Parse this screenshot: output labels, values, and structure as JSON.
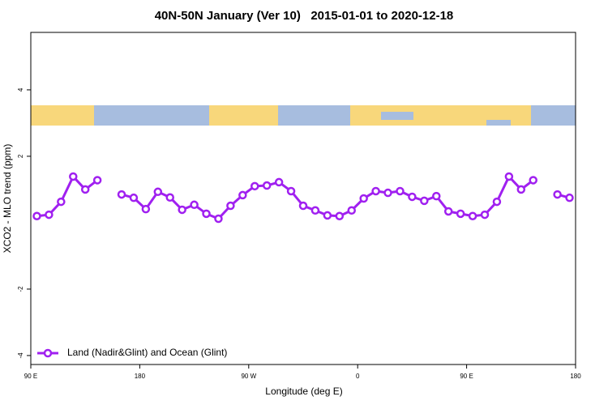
{
  "chart_data": {
    "type": "line",
    "title": "40N-50N January (Ver 10)   2015-01-01 to 2020-12-18",
    "xlabel": "Longitude (deg E)",
    "ylabel": "XCO2 - MLO trend (ppm)",
    "x": [
      95,
      105,
      115,
      125,
      135,
      145,
      155,
      165,
      175,
      185,
      195,
      205,
      215,
      225,
      235,
      245,
      255,
      265,
      275,
      285,
      295,
      305,
      315,
      325,
      335,
      345,
      355,
      365,
      375,
      385,
      395,
      405,
      415,
      425,
      435,
      445,
      455,
      465,
      475,
      485,
      495,
      505,
      515,
      525,
      535
    ],
    "series": [
      {
        "name": "Land (Nadir&Glint) and Ocean (Glint)",
        "color": "#a020f0",
        "values": [
          0.2,
          0.24,
          0.63,
          1.39,
          1.0,
          1.28,
          null,
          0.85,
          0.75,
          0.41,
          0.93,
          0.76,
          0.39,
          0.54,
          0.27,
          0.12,
          0.51,
          0.83,
          1.1,
          1.12,
          1.22,
          0.95,
          0.51,
          0.37,
          0.22,
          0.2,
          0.37,
          0.73,
          0.95,
          0.9,
          0.95,
          0.78,
          0.66,
          0.8,
          0.34,
          0.27,
          0.2,
          0.24,
          0.63,
          1.39,
          1.0,
          1.28,
          null,
          0.85,
          0.75
        ]
      }
    ],
    "xlim": [
      90,
      540
    ],
    "xticks": [
      {
        "value": 90,
        "label": "90 E"
      },
      {
        "value": 180,
        "label": "180"
      },
      {
        "value": 270,
        "label": "90 W"
      },
      {
        "value": 360,
        "label": "0"
      },
      {
        "value": 450,
        "label": "90 E"
      },
      {
        "value": 540,
        "label": "180"
      }
    ],
    "ylim": [
      -4.27,
      5.73
    ],
    "yticks": [
      -4,
      -2,
      2,
      4
    ],
    "legend": "bottom-left"
  }
}
